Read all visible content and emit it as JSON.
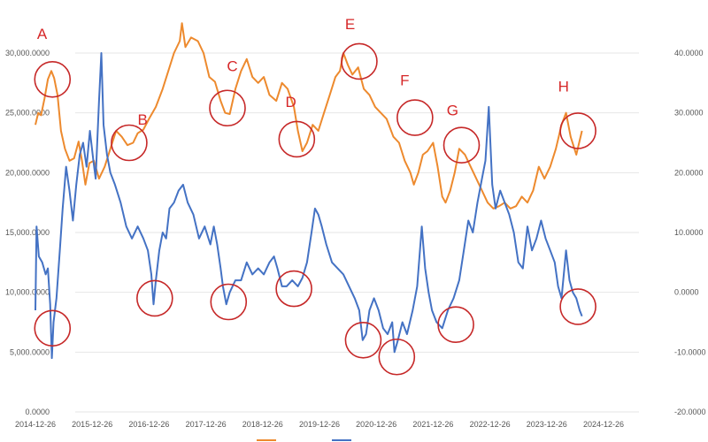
{
  "chart_data": {
    "type": "line",
    "x_ticks": [
      "2014-12-26",
      "2015-12-26",
      "2016-12-26",
      "2017-12-26",
      "2018-12-26",
      "2019-12-26",
      "2020-12-26",
      "2021-12-26",
      "2022-12-26",
      "2023-12-26",
      "2024-12-26"
    ],
    "y_left_ticks": [
      "0.0000",
      "5,000.0000",
      "10,000.0000",
      "15,000.0000",
      "20,000.0000",
      "25,000.0000",
      "30,000.0000"
    ],
    "y_left_range": [
      0,
      30000
    ],
    "y_right_ticks": [
      "-20.0000",
      "-10.0000",
      "0.0000",
      "10.0000",
      "20.0000",
      "30.0000",
      "40.0000"
    ],
    "y_right_range": [
      -20,
      40
    ],
    "grid": "horizontal",
    "legend_placement": "bottom",
    "series": [
      {
        "name": "",
        "axis": "left",
        "color": "#ED8A2E",
        "values": [
          [
            0.0,
            24000
          ],
          [
            0.05,
            25000
          ],
          [
            0.1,
            24800
          ],
          [
            0.16,
            26200
          ],
          [
            0.22,
            27800
          ],
          [
            0.28,
            28500
          ],
          [
            0.33,
            27900
          ],
          [
            0.39,
            26500
          ],
          [
            0.45,
            23500
          ],
          [
            0.52,
            22000
          ],
          [
            0.6,
            21000
          ],
          [
            0.68,
            21200
          ],
          [
            0.76,
            22600
          ],
          [
            0.82,
            21000
          ],
          [
            0.88,
            19000
          ],
          [
            0.95,
            20800
          ],
          [
            1.03,
            21000
          ],
          [
            1.12,
            19500
          ],
          [
            1.22,
            20500
          ],
          [
            1.32,
            22000
          ],
          [
            1.42,
            23500
          ],
          [
            1.52,
            23000
          ],
          [
            1.62,
            22300
          ],
          [
            1.72,
            22500
          ],
          [
            1.8,
            23300
          ],
          [
            1.9,
            23600
          ],
          [
            2.0,
            24500
          ],
          [
            2.12,
            25500
          ],
          [
            2.24,
            27000
          ],
          [
            2.34,
            28500
          ],
          [
            2.44,
            30000
          ],
          [
            2.54,
            31000
          ],
          [
            2.58,
            32500
          ],
          [
            2.64,
            30500
          ],
          [
            2.74,
            31300
          ],
          [
            2.86,
            31000
          ],
          [
            2.96,
            30000
          ],
          [
            3.06,
            28000
          ],
          [
            3.16,
            27600
          ],
          [
            3.26,
            26000
          ],
          [
            3.34,
            25000
          ],
          [
            3.42,
            24900
          ],
          [
            3.52,
            27000
          ],
          [
            3.62,
            28500
          ],
          [
            3.72,
            29500
          ],
          [
            3.82,
            28000
          ],
          [
            3.92,
            27500
          ],
          [
            4.02,
            28000
          ],
          [
            4.12,
            26500
          ],
          [
            4.24,
            26000
          ],
          [
            4.34,
            27500
          ],
          [
            4.44,
            27000
          ],
          [
            4.55,
            25500
          ],
          [
            4.62,
            23500
          ],
          [
            4.7,
            21800
          ],
          [
            4.78,
            22500
          ],
          [
            4.88,
            24000
          ],
          [
            4.98,
            23500
          ],
          [
            5.08,
            25000
          ],
          [
            5.18,
            26500
          ],
          [
            5.28,
            28000
          ],
          [
            5.36,
            28500
          ],
          [
            5.42,
            30000
          ],
          [
            5.5,
            29000
          ],
          [
            5.58,
            28200
          ],
          [
            5.68,
            28800
          ],
          [
            5.78,
            27000
          ],
          [
            5.88,
            26500
          ],
          [
            5.98,
            25500
          ],
          [
            6.08,
            25000
          ],
          [
            6.18,
            24500
          ],
          [
            6.3,
            23000
          ],
          [
            6.4,
            22500
          ],
          [
            6.5,
            21000
          ],
          [
            6.6,
            20000
          ],
          [
            6.66,
            19000
          ],
          [
            6.74,
            20000
          ],
          [
            6.82,
            21500
          ],
          [
            6.9,
            21800
          ],
          [
            7.0,
            22500
          ],
          [
            7.08,
            20500
          ],
          [
            7.16,
            18000
          ],
          [
            7.22,
            17500
          ],
          [
            7.3,
            18500
          ],
          [
            7.38,
            20000
          ],
          [
            7.46,
            22000
          ],
          [
            7.56,
            21500
          ],
          [
            7.66,
            20500
          ],
          [
            7.76,
            19500
          ],
          [
            7.86,
            18500
          ],
          [
            7.96,
            17500
          ],
          [
            8.06,
            17000
          ],
          [
            8.16,
            17200
          ],
          [
            8.26,
            17500
          ],
          [
            8.36,
            17000
          ],
          [
            8.46,
            17200
          ],
          [
            8.56,
            18000
          ],
          [
            8.66,
            17500
          ],
          [
            8.76,
            18500
          ],
          [
            8.86,
            20500
          ],
          [
            8.96,
            19500
          ],
          [
            9.06,
            20500
          ],
          [
            9.16,
            22000
          ],
          [
            9.26,
            24000
          ],
          [
            9.34,
            25000
          ],
          [
            9.42,
            23000
          ],
          [
            9.52,
            21500
          ],
          [
            9.62,
            23500
          ]
        ]
      },
      {
        "name": "",
        "axis": "left",
        "color": "#4472C4",
        "values": [
          [
            0.0,
            8500
          ],
          [
            0.02,
            15500
          ],
          [
            0.06,
            13000
          ],
          [
            0.12,
            12500
          ],
          [
            0.18,
            11500
          ],
          [
            0.22,
            12000
          ],
          [
            0.26,
            9000
          ],
          [
            0.29,
            4500
          ],
          [
            0.32,
            7500
          ],
          [
            0.37,
            9500
          ],
          [
            0.43,
            13500
          ],
          [
            0.48,
            17000
          ],
          [
            0.54,
            20500
          ],
          [
            0.6,
            18500
          ],
          [
            0.66,
            16000
          ],
          [
            0.72,
            19000
          ],
          [
            0.78,
            21500
          ],
          [
            0.84,
            22500
          ],
          [
            0.9,
            20500
          ],
          [
            0.96,
            23500
          ],
          [
            1.02,
            21000
          ],
          [
            1.06,
            19500
          ],
          [
            1.12,
            26000
          ],
          [
            1.16,
            30000
          ],
          [
            1.2,
            24000
          ],
          [
            1.26,
            21500
          ],
          [
            1.32,
            20000
          ],
          [
            1.4,
            19000
          ],
          [
            1.5,
            17500
          ],
          [
            1.6,
            15500
          ],
          [
            1.7,
            14500
          ],
          [
            1.8,
            15500
          ],
          [
            1.9,
            14500
          ],
          [
            1.98,
            13500
          ],
          [
            2.04,
            11500
          ],
          [
            2.08,
            9000
          ],
          [
            2.12,
            11000
          ],
          [
            2.18,
            13500
          ],
          [
            2.24,
            15000
          ],
          [
            2.3,
            14500
          ],
          [
            2.36,
            17000
          ],
          [
            2.44,
            17500
          ],
          [
            2.52,
            18500
          ],
          [
            2.6,
            19000
          ],
          [
            2.68,
            17500
          ],
          [
            2.78,
            16500
          ],
          [
            2.88,
            14500
          ],
          [
            2.98,
            15500
          ],
          [
            3.08,
            14000
          ],
          [
            3.14,
            15500
          ],
          [
            3.2,
            14000
          ],
          [
            3.26,
            12000
          ],
          [
            3.3,
            10500
          ],
          [
            3.36,
            9000
          ],
          [
            3.42,
            10000
          ],
          [
            3.52,
            11000
          ],
          [
            3.62,
            11000
          ],
          [
            3.72,
            12500
          ],
          [
            3.82,
            11500
          ],
          [
            3.92,
            12000
          ],
          [
            4.02,
            11500
          ],
          [
            4.12,
            12500
          ],
          [
            4.2,
            13000
          ],
          [
            4.26,
            12000
          ],
          [
            4.34,
            10500
          ],
          [
            4.42,
            10500
          ],
          [
            4.52,
            11000
          ],
          [
            4.62,
            10500
          ],
          [
            4.7,
            11200
          ],
          [
            4.78,
            12500
          ],
          [
            4.86,
            15000
          ],
          [
            4.92,
            17000
          ],
          [
            4.98,
            16500
          ],
          [
            5.04,
            15500
          ],
          [
            5.12,
            14000
          ],
          [
            5.22,
            12500
          ],
          [
            5.32,
            12000
          ],
          [
            5.42,
            11500
          ],
          [
            5.52,
            10500
          ],
          [
            5.62,
            9500
          ],
          [
            5.7,
            8500
          ],
          [
            5.76,
            6000
          ],
          [
            5.82,
            6500
          ],
          [
            5.88,
            8500
          ],
          [
            5.96,
            9500
          ],
          [
            6.04,
            8500
          ],
          [
            6.12,
            7000
          ],
          [
            6.2,
            6500
          ],
          [
            6.28,
            7500
          ],
          [
            6.32,
            5000
          ],
          [
            6.38,
            6000
          ],
          [
            6.46,
            7500
          ],
          [
            6.54,
            6500
          ],
          [
            6.64,
            8500
          ],
          [
            6.72,
            10500
          ],
          [
            6.8,
            15500
          ],
          [
            6.86,
            12000
          ],
          [
            6.92,
            10000
          ],
          [
            6.98,
            8500
          ],
          [
            7.06,
            7500
          ],
          [
            7.16,
            7000
          ],
          [
            7.26,
            8500
          ],
          [
            7.36,
            9500
          ],
          [
            7.46,
            11000
          ],
          [
            7.54,
            13500
          ],
          [
            7.62,
            16000
          ],
          [
            7.7,
            15000
          ],
          [
            7.78,
            17500
          ],
          [
            7.86,
            19500
          ],
          [
            7.92,
            21000
          ],
          [
            7.98,
            25500
          ],
          [
            8.04,
            19000
          ],
          [
            8.1,
            17000
          ],
          [
            8.18,
            18500
          ],
          [
            8.26,
            17500
          ],
          [
            8.34,
            16500
          ],
          [
            8.42,
            15000
          ],
          [
            8.5,
            12500
          ],
          [
            8.58,
            12000
          ],
          [
            8.66,
            15500
          ],
          [
            8.74,
            13500
          ],
          [
            8.82,
            14500
          ],
          [
            8.9,
            16000
          ],
          [
            8.98,
            14500
          ],
          [
            9.06,
            13500
          ],
          [
            9.14,
            12500
          ],
          [
            9.2,
            10500
          ],
          [
            9.26,
            9500
          ],
          [
            9.34,
            13500
          ],
          [
            9.4,
            11000
          ],
          [
            9.46,
            10000
          ],
          [
            9.52,
            9500
          ],
          [
            9.58,
            8500
          ],
          [
            9.62,
            8000
          ]
        ]
      }
    ],
    "annotations": [
      {
        "label": "A",
        "x": 0.3,
        "y": 27800,
        "label_x": 0.03,
        "label_y": 31200,
        "target": "orange-peak"
      },
      {
        "label": "",
        "x": 0.3,
        "y": 7000,
        "target": "blue-trough"
      },
      {
        "label": "B",
        "x": 1.65,
        "y": 22500,
        "label_x": 1.8,
        "label_y": 24000,
        "target": "orange-trough"
      },
      {
        "label": "",
        "x": 2.1,
        "y": 9500,
        "target": "blue-trough"
      },
      {
        "label": "C",
        "x": 3.38,
        "y": 25400,
        "label_x": 3.37,
        "label_y": 28500,
        "target": "orange-trough"
      },
      {
        "label": "",
        "x": 3.4,
        "y": 9200,
        "target": "blue-trough"
      },
      {
        "label": "D",
        "x": 4.6,
        "y": 22800,
        "label_x": 4.4,
        "label_y": 25500,
        "target": "orange-trough"
      },
      {
        "label": "",
        "x": 4.55,
        "y": 10300,
        "target": "blue-trough"
      },
      {
        "label": "E",
        "x": 5.7,
        "y": 29300,
        "label_x": 5.45,
        "label_y": 32000,
        "target": "orange-peak"
      },
      {
        "label": "",
        "x": 5.77,
        "y": 6000,
        "target": "blue-trough"
      },
      {
        "label": "F",
        "x": 6.68,
        "y": 24600,
        "label_x": 6.42,
        "label_y": 27300,
        "target": "orange-peak"
      },
      {
        "label": "",
        "x": 6.36,
        "y": 4600,
        "target": "blue-trough"
      },
      {
        "label": "G",
        "x": 7.5,
        "y": 22300,
        "label_x": 7.24,
        "label_y": 24800,
        "target": "orange-peak"
      },
      {
        "label": "",
        "x": 7.4,
        "y": 7300,
        "target": "blue-trough"
      },
      {
        "label": "H",
        "x": 9.55,
        "y": 23500,
        "label_x": 9.2,
        "label_y": 26800,
        "target": "orange-peak"
      },
      {
        "label": "",
        "x": 9.55,
        "y": 8800,
        "target": "blue-trough"
      }
    ]
  }
}
